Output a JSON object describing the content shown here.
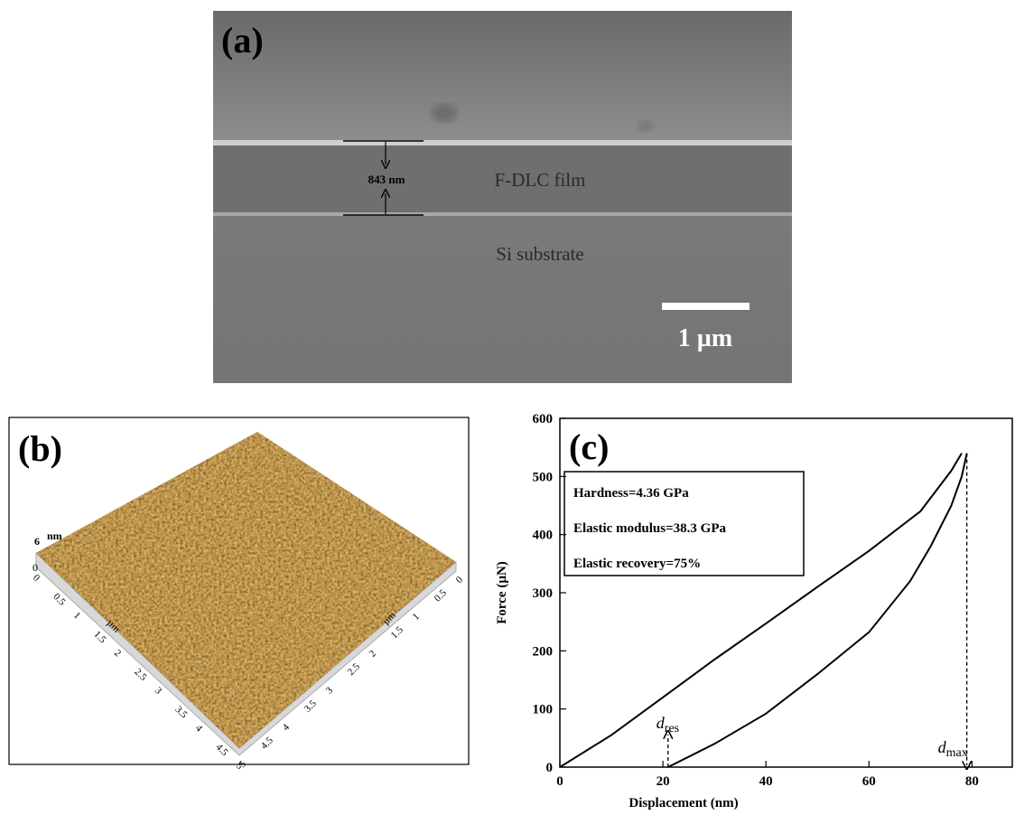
{
  "panel_a": {
    "label": "(a)",
    "thickness": "843 nm",
    "film": "F-DLC film",
    "substrate": "Si substrate",
    "scale_bar": "1 µm"
  },
  "panel_b": {
    "label": "(b)",
    "z_tick": "6",
    "z_unit": "nm",
    "z_zero": "0",
    "left_ticks": [
      "0",
      "0.5",
      "1",
      "1.5",
      "2",
      "2.5",
      "3",
      "3.5",
      "4",
      "4.5",
      "5"
    ],
    "right_ticks": [
      "0",
      "0.5",
      "1",
      "1.5",
      "2",
      "2.5",
      "3",
      "3.5",
      "4",
      "4.5",
      "5"
    ],
    "left_unit": "µm",
    "right_unit": "µm"
  },
  "chart_data": {
    "type": "line",
    "title": "(c)",
    "x_label": "Displacement (nm)",
    "y_label": "Force (µN)",
    "xlim": [
      0,
      88
    ],
    "ylim": [
      0,
      600
    ],
    "xticks": [
      0,
      20,
      40,
      60,
      80
    ],
    "yticks": [
      0,
      100,
      200,
      300,
      400,
      500,
      600
    ],
    "series": [
      {
        "color": "#000000",
        "x": [
          0,
          10,
          20,
          30,
          40,
          50,
          60,
          70,
          76,
          78
        ],
        "values": [
          0,
          55,
          120,
          185,
          247,
          310,
          372,
          440,
          510,
          540
        ]
      },
      {
        "color": "#000000",
        "x": [
          79,
          78,
          76,
          72,
          68,
          60,
          50,
          40,
          30,
          21
        ],
        "values": [
          540,
          500,
          450,
          380,
          320,
          232,
          160,
          92,
          40,
          0
        ]
      }
    ],
    "annotations": [
      "Hardness=4.36 GPa",
      "Elastic modulus=38.3 GPa",
      "Elastic recovery=75%"
    ],
    "markers": {
      "residual": {
        "symbol": "d",
        "subscript": "res"
      },
      "maximum": {
        "symbol": "d",
        "subscript": "max"
      }
    }
  }
}
